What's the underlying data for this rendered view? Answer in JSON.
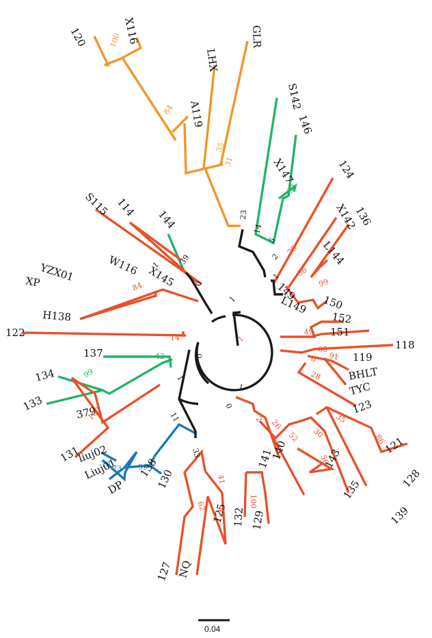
{
  "colors": {
    "orange": "#f0962a",
    "red": "#e8512a",
    "green": "#22b466",
    "blue": "#1a7ab8",
    "black": "#1a1a1a"
  },
  "scale_bar": {
    "label": "0.04"
  },
  "clades": [
    {
      "id": "clade-orange",
      "color_key": "orange",
      "tips": [
        "120",
        "X116",
        "A119",
        "LHX",
        "GLR"
      ]
    },
    {
      "id": "clade-green-a",
      "color_key": "green",
      "tips": [
        "S142",
        "146",
        "X147",
        "144"
      ]
    },
    {
      "id": "clade-green-b",
      "color_key": "green",
      "tips": [
        "137",
        "134",
        "133"
      ]
    },
    {
      "id": "clade-blue",
      "color_key": "blue",
      "tips": [
        "liuj02",
        "Liuj01",
        "DP",
        "138"
      ]
    },
    {
      "id": "clade-red",
      "color_key": "red",
      "tips": [
        "124",
        "X142",
        "136",
        "L144",
        "149",
        "L149",
        "150",
        "152",
        "151",
        "118",
        "119",
        "BHLT",
        "TYC",
        "123",
        "121",
        "128",
        "139",
        "135",
        "143",
        "140",
        "141",
        "129",
        "132",
        "125",
        "NQ",
        "127",
        "130",
        "379",
        "131",
        "122",
        "H138",
        "XP",
        "YZX01",
        "W116",
        "X145",
        "S115",
        "114"
      ]
    }
  ],
  "leaves": [
    {
      "name": "120",
      "rotation": 62
    },
    {
      "name": "X116",
      "rotation": 78
    },
    {
      "name": "LHX",
      "rotation": 82
    },
    {
      "name": "GLR",
      "rotation": 88
    },
    {
      "name": "A119",
      "rotation": 80
    },
    {
      "name": "S142",
      "rotation": 78
    },
    {
      "name": "146",
      "rotation": 70
    },
    {
      "name": "X147",
      "rotation": 58
    },
    {
      "name": "124",
      "rotation": 58
    },
    {
      "name": "X142",
      "rotation": 60
    },
    {
      "name": "136",
      "rotation": 60
    },
    {
      "name": "L144",
      "rotation": 50
    },
    {
      "name": "149",
      "rotation": 42
    },
    {
      "name": "L149",
      "rotation": 25
    },
    {
      "name": "150",
      "rotation": 20
    },
    {
      "name": "152",
      "rotation": 10
    },
    {
      "name": "151",
      "rotation": 0
    },
    {
      "name": "118",
      "rotation": 0
    },
    {
      "name": "119",
      "rotation": 0
    },
    {
      "name": "BHLT",
      "rotation": -10
    },
    {
      "name": "TYC",
      "rotation": -15
    },
    {
      "name": "123",
      "rotation": -20
    },
    {
      "name": "121",
      "rotation": -35
    },
    {
      "name": "128",
      "rotation": -48
    },
    {
      "name": "139",
      "rotation": -45
    },
    {
      "name": "135",
      "rotation": -55
    },
    {
      "name": "143",
      "rotation": -62
    },
    {
      "name": "140",
      "rotation": -70
    },
    {
      "name": "141",
      "rotation": -72
    },
    {
      "name": "129",
      "rotation": -80
    },
    {
      "name": "132",
      "rotation": -86
    },
    {
      "name": "125",
      "rotation": -75
    },
    {
      "name": "NQ",
      "rotation": -75
    },
    {
      "name": "127",
      "rotation": -70
    },
    {
      "name": "130",
      "rotation": -65
    },
    {
      "name": "138",
      "rotation": -55
    },
    {
      "name": "DP",
      "rotation": -30
    },
    {
      "name": "Liuj01",
      "rotation": -25
    },
    {
      "name": "liuj02",
      "rotation": -20
    },
    {
      "name": "131",
      "rotation": -30
    },
    {
      "name": "379",
      "rotation": -12
    },
    {
      "name": "133",
      "rotation": -25
    },
    {
      "name": "134",
      "rotation": -15
    },
    {
      "name": "137",
      "rotation": 0
    },
    {
      "name": "122",
      "rotation": 0
    },
    {
      "name": "H138",
      "rotation": 5
    },
    {
      "name": "XP",
      "rotation": 10
    },
    {
      "name": "YZX01",
      "rotation": 18
    },
    {
      "name": "W116",
      "rotation": 25
    },
    {
      "name": "X145",
      "rotation": 32
    },
    {
      "name": "S115",
      "rotation": 45
    },
    {
      "name": "114",
      "rotation": 50
    },
    {
      "name": "144",
      "rotation": 50
    }
  ],
  "bootstrap": [
    {
      "value": "100",
      "color_key": "orange",
      "rotation": -70
    },
    {
      "value": "84",
      "color_key": "orange",
      "rotation": -55
    },
    {
      "value": "35",
      "color_key": "orange",
      "rotation": -70
    },
    {
      "value": "31",
      "color_key": "orange",
      "rotation": -70
    },
    {
      "value": "23",
      "color_key": "black",
      "rotation": -85
    },
    {
      "value": "14",
      "color_key": "black",
      "rotation": -75
    },
    {
      "value": "94",
      "color_key": "green",
      "rotation": -60
    },
    {
      "value": "5",
      "color_key": "black",
      "rotation": -55
    },
    {
      "value": "2",
      "color_key": "black",
      "rotation": -50
    },
    {
      "value": "1",
      "color_key": "black",
      "rotation": -45
    },
    {
      "value": "78",
      "color_key": "red",
      "rotation": -45
    },
    {
      "value": "50",
      "color_key": "red",
      "rotation": -30
    },
    {
      "value": "99",
      "color_key": "red",
      "rotation": -20
    },
    {
      "value": "49",
      "color_key": "red",
      "rotation": -5
    },
    {
      "value": "0",
      "color_key": "red",
      "rotation": 20
    },
    {
      "value": "68",
      "color_key": "red",
      "rotation": 0
    },
    {
      "value": "91",
      "color_key": "red",
      "rotation": 10
    },
    {
      "value": "28",
      "color_key": "red",
      "rotation": 25
    },
    {
      "value": "1",
      "color_key": "black",
      "rotation": 20
    },
    {
      "value": "0",
      "color_key": "black",
      "rotation": 60
    },
    {
      "value": "2",
      "color_key": "red",
      "rotation": 60
    },
    {
      "value": "26",
      "color_key": "red",
      "rotation": 50
    },
    {
      "value": "52",
      "color_key": "red",
      "rotation": 45
    },
    {
      "value": "30",
      "color_key": "red",
      "rotation": 40
    },
    {
      "value": "35",
      "color_key": "red",
      "rotation": 35
    },
    {
      "value": "86",
      "color_key": "red",
      "rotation": 55
    },
    {
      "value": "56",
      "color_key": "red",
      "rotation": 70
    },
    {
      "value": "100",
      "color_key": "red",
      "rotation": 90
    },
    {
      "value": "33",
      "color_key": "black",
      "rotation": 75
    },
    {
      "value": "41",
      "color_key": "red",
      "rotation": 80
    },
    {
      "value": "45",
      "color_key": "red",
      "rotation": 80
    },
    {
      "value": "62",
      "color_key": "red",
      "rotation": 70
    },
    {
      "value": "99",
      "color_key": "blue",
      "rotation": 0
    },
    {
      "value": "73",
      "color_key": "blue",
      "rotation": 0
    },
    {
      "value": "73",
      "color_key": "blue",
      "rotation": 0
    },
    {
      "value": "11",
      "color_key": "black",
      "rotation": 60
    },
    {
      "value": "1",
      "color_key": "black",
      "rotation": 60
    },
    {
      "value": "100",
      "color_key": "red",
      "rotation": -45
    },
    {
      "value": "99",
      "color_key": "green",
      "rotation": -30
    },
    {
      "value": "42",
      "color_key": "green",
      "rotation": 0
    },
    {
      "value": "0",
      "color_key": "black",
      "rotation": 85
    },
    {
      "value": "14",
      "color_key": "red",
      "rotation": 0
    },
    {
      "value": "84",
      "color_key": "red",
      "rotation": -25
    },
    {
      "value": "1",
      "color_key": "black",
      "rotation": -45
    },
    {
      "value": "39",
      "color_key": "black",
      "rotation": -55
    },
    {
      "value": "0",
      "color_key": "black",
      "rotation": -70
    },
    {
      "value": "1",
      "color_key": "black",
      "rotation": -45
    },
    {
      "value": "1",
      "color_key": "red",
      "rotation": -45
    }
  ]
}
